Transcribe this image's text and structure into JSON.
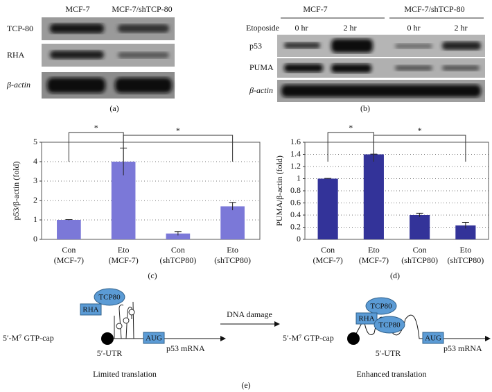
{
  "blot_a": {
    "headers": [
      "MCF-7",
      "MCF-7/shTCP-80"
    ],
    "rows": [
      "TCP-80",
      "RHA",
      "β-actin"
    ],
    "caption": "(a)"
  },
  "blot_b": {
    "headers": [
      "MCF-7",
      "MCF-7/shTCP-80"
    ],
    "treatment": "Etoposide",
    "times": [
      "0 hr",
      "2 hr",
      "0 hr",
      "2 hr"
    ],
    "rows": [
      "p53",
      "PUMA",
      "β-actin"
    ],
    "caption": "(b)"
  },
  "chart_data": [
    {
      "type": "bar",
      "y_label": "p53/β-actin (fold)",
      "caption": "(c)",
      "categories": [
        [
          "Con",
          "(MCF-7)"
        ],
        [
          "Eto",
          "(MCF-7)"
        ],
        [
          "Con",
          "(shTCP80)"
        ],
        [
          "Eto",
          "(shTCP80)"
        ]
      ],
      "values": [
        1,
        4,
        0.3,
        1.7
      ],
      "errors": [
        0.02,
        0.7,
        0.1,
        0.2
      ],
      "color": "#7b78d8",
      "ylim": [
        0,
        5
      ],
      "yticks": [
        0,
        1,
        2,
        3,
        4,
        5
      ],
      "grid": true,
      "annotations": [
        "*",
        "*"
      ]
    },
    {
      "type": "bar",
      "y_label": "PUMA/β-actin (fold)",
      "caption": "(d)",
      "categories": [
        [
          "Con",
          "(MCF-7)"
        ],
        [
          "Eto",
          "(MCF-7)"
        ],
        [
          "Con",
          "(shTCP80)"
        ],
        [
          "Eto",
          "(shTCP80)"
        ]
      ],
      "values": [
        1,
        1.4,
        0.4,
        0.23
      ],
      "errors": [
        0.005,
        0.005,
        0.03,
        0.05
      ],
      "color": "#333399",
      "ylim": [
        0,
        1.6
      ],
      "yticks": [
        0,
        0.2,
        0.4,
        0.6,
        0.8,
        1,
        1.2,
        1.4,
        1.6
      ],
      "grid": true,
      "annotations": [
        "*",
        "*"
      ]
    }
  ],
  "diagram": {
    "cap": "5′-M⁷ GTP-cap",
    "rha": "RHA",
    "tcp80": "TCP80",
    "utr": "5′-UTR",
    "aug": "AUG",
    "mrna": "p53 mRNA",
    "left_caption": "Limited translation",
    "arrow_label": "DNA damage",
    "right_caption": "Enhanced translation",
    "caption": "(e)"
  }
}
